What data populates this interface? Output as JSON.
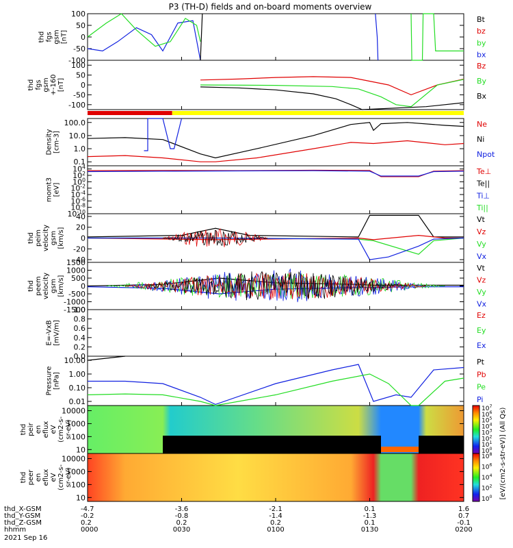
{
  "title": "P3 (TH-D) fields and on-board moments overview",
  "colors": {
    "black": "#000000",
    "red": "#e00000",
    "green": "#22dd22",
    "blue": "#1020e0",
    "yellow": "#ffff00"
  },
  "chart_data": {
    "type": "line",
    "xaxis": {
      "tick_times": [
        "0000",
        "0030",
        "0100",
        "0130",
        "0200"
      ],
      "rows": [
        {
          "label": "thd_X-GSM",
          "values": [
            "-4.7",
            "-3.6",
            "-2.1",
            "0.1",
            "1.6"
          ]
        },
        {
          "label": "thd_Y-GSM",
          "values": [
            "-0.2",
            "-0.8",
            "-1.4",
            "-1.3",
            "0.7"
          ]
        },
        {
          "label": "thd_Z-GSM",
          "values": [
            "0.2",
            "0.2",
            "0.2",
            "0.1",
            "-0.1"
          ]
        },
        {
          "label": "hhmm",
          "values": [
            "0000",
            "0030",
            "0100",
            "0130",
            "0200"
          ]
        }
      ],
      "date": "2021 Sep 16"
    },
    "panels": [
      {
        "id": "fgs",
        "ylabel": [
          "thd",
          "fgs",
          "gsm",
          "[nT]"
        ],
        "ylim": [
          -100,
          100
        ],
        "ticks": [
          "100",
          "50",
          "0",
          "-50",
          "-100"
        ],
        "legend": [
          {
            "name": "Bt",
            "color": "#000000"
          },
          {
            "name": "bz",
            "color": "#e00000"
          },
          {
            "name": "by",
            "color": "#22dd22"
          },
          {
            "name": "bx",
            "color": "#1020e0"
          }
        ]
      },
      {
        "id": "fgs_clip",
        "ylabel": [
          "thd",
          "fgs",
          "gsm",
          "+-160",
          "[nT]"
        ],
        "ylim": [
          -125,
          125
        ],
        "ticks": [
          "100",
          "50",
          "0",
          "-50",
          "-100"
        ],
        "legend": [
          {
            "name": "Bz",
            "color": "#e00000"
          },
          {
            "name": "By",
            "color": "#22dd22"
          },
          {
            "name": "Bx",
            "color": "#000000"
          }
        ]
      },
      {
        "id": "density",
        "ylabel": [
          "Density",
          "[cm-3]"
        ],
        "ylim": [
          0.05,
          200
        ],
        "scale": "log",
        "ticks": [
          "100.0",
          "10.0",
          "1.0",
          "0.1"
        ],
        "legend": [
          {
            "name": "Ne",
            "color": "#e00000"
          },
          {
            "name": "Ni",
            "color": "#000000"
          },
          {
            "name": "Npot",
            "color": "#1020e0"
          }
        ]
      },
      {
        "id": "temp",
        "ylabel": [
          "momt3",
          "[eV]"
        ],
        "ylim": [
          1e-10,
          100000.0
        ],
        "scale": "log",
        "ticks": [
          "10^4",
          "10^2",
          "10^0",
          "10^-2",
          "10^-4",
          "10^-6",
          "10^-8",
          "10^-10"
        ],
        "legend": [
          {
            "name": "Te⊥",
            "color": "#e00000"
          },
          {
            "name": "Te||",
            "color": "#000000"
          },
          {
            "name": "Ti⊥",
            "color": "#1020e0"
          },
          {
            "name": "Ti||",
            "color": "#22dd22"
          }
        ]
      },
      {
        "id": "peim",
        "ylabel": [
          "thd",
          "peim",
          "velocity",
          "gsm",
          "[km/s]"
        ],
        "ylim": [
          -45,
          45
        ],
        "ticks": [
          "40",
          "20",
          "0",
          "-20",
          "-40"
        ],
        "legend": [
          {
            "name": "Vt",
            "color": "#000000"
          },
          {
            "name": "Vz",
            "color": "#e00000"
          },
          {
            "name": "Vy",
            "color": "#22dd22"
          },
          {
            "name": "Vx",
            "color": "#1020e0"
          }
        ]
      },
      {
        "id": "peem",
        "ylabel": [
          "thd",
          "peem",
          "velocity",
          "gsm",
          "[km/s]"
        ],
        "ylim": [
          -1500,
          1500
        ],
        "ticks": [
          "1500",
          "1000",
          "500",
          "0",
          "-500",
          "-1000",
          "-1500"
        ],
        "legend": [
          {
            "name": "Vt",
            "color": "#000000"
          },
          {
            "name": "Vz",
            "color": "#e00000"
          },
          {
            "name": "Vy",
            "color": "#22dd22"
          },
          {
            "name": "Vx",
            "color": "#1020e0"
          }
        ]
      },
      {
        "id": "efield",
        "ylabel": [
          "E=-VxB",
          "[mV/m]"
        ],
        "ylim": [
          0,
          1
        ],
        "ticks": [
          "1.0",
          "0.8",
          "0.6",
          "0.4",
          "0.2",
          "0.0"
        ],
        "legend": [
          {
            "name": "Ez",
            "color": "#e00000"
          },
          {
            "name": "Ey",
            "color": "#22dd22"
          },
          {
            "name": "Ex",
            "color": "#1020e0"
          }
        ]
      },
      {
        "id": "pressure",
        "ylabel": [
          "Pressure",
          "[nPa]"
        ],
        "ylim": [
          0.005,
          20
        ],
        "scale": "log",
        "ticks": [
          "10.00",
          "1.00",
          "0.10",
          "0.01"
        ],
        "legend": [
          {
            "name": "Pt",
            "color": "#000000"
          },
          {
            "name": "Pb",
            "color": "#e00000"
          },
          {
            "name": "Pe",
            "color": "#22dd22"
          },
          {
            "name": "Pi",
            "color": "#1020e0"
          }
        ]
      },
      {
        "id": "peir",
        "type": "heatmap",
        "ylabel": [
          "thd",
          "peir",
          "en",
          "eflux",
          "eV",
          "(cm2-s-",
          "sr-eV)"
        ],
        "ylim": [
          5,
          25000
        ],
        "scale": "log",
        "ticks": [
          "10000",
          "1000",
          "100",
          "10"
        ],
        "colorbar": {
          "range": [
            "10^0",
            "10^7"
          ],
          "ticks": [
            "10^7",
            "10^6",
            "10^5",
            "10^4",
            "10^3",
            "10^2",
            "10^1",
            "10^0"
          ]
        }
      },
      {
        "id": "peer",
        "type": "heatmap",
        "ylabel": [
          "thd",
          "peer",
          "en",
          "eflux",
          "eV",
          "(cm2-s-",
          "sr-eV)"
        ],
        "ylim": [
          5,
          25000
        ],
        "scale": "log",
        "ticks": [
          "10000",
          "1000",
          "100",
          "10"
        ],
        "colorbar": {
          "range": [
            "10^0",
            "10^8"
          ],
          "ticks": [
            "10^8",
            "10^6",
            "10^4",
            "10^2",
            "10^0"
          ]
        }
      }
    ],
    "colorbar_label": "[eV/(cm2-s-str-eV)] (All Qs)",
    "mode_bar": [
      {
        "from": 0,
        "to": 0.225,
        "color": "#e00000"
      },
      {
        "from": 0.225,
        "to": 1,
        "color": "#ffff00"
      }
    ],
    "series": [
      {
        "panel": "fgs",
        "name": "bx",
        "x": [
          0,
          0.04,
          0.08,
          0.13,
          0.17,
          0.2,
          0.24,
          0.28,
          0.3
        ],
        "y": [
          -50,
          -60,
          -20,
          40,
          10,
          -60,
          60,
          70,
          -110
        ]
      },
      {
        "panel": "fgs",
        "name": "by",
        "x": [
          0,
          0.05,
          0.09,
          0.13,
          0.18,
          0.22,
          0.26,
          0.29,
          0.3
        ],
        "y": [
          0,
          60,
          100,
          30,
          -40,
          -20,
          80,
          50,
          -20
        ]
      },
      {
        "panel": "fgs",
        "name": "Bt",
        "x": [
          0.3,
          0.305
        ],
        "y": [
          -100,
          100
        ]
      },
      {
        "panel": "fgs",
        "name": "bx",
        "x": [
          0.765,
          0.77,
          0.772
        ],
        "y": [
          100,
          0,
          -100
        ]
      },
      {
        "panel": "fgs",
        "name": "by",
        "x": [
          0.86,
          0.862,
          0.89,
          0.892,
          0.92,
          0.925,
          1
        ],
        "y": [
          100,
          -100,
          -100,
          100,
          100,
          -60,
          -60
        ]
      },
      {
        "panel": "fgs_clip",
        "name": "Bz",
        "x": [
          0.3,
          0.4,
          0.5,
          0.6,
          0.7,
          0.8,
          0.86,
          0.93,
          1
        ],
        "y": [
          25,
          30,
          38,
          42,
          38,
          0,
          -50,
          0,
          30
        ]
      },
      {
        "panel": "fgs_clip",
        "name": "By",
        "x": [
          0.3,
          0.5,
          0.65,
          0.72,
          0.78,
          0.82,
          0.86,
          0.93,
          1
        ],
        "y": [
          0,
          -2,
          -8,
          -20,
          -60,
          -100,
          -110,
          0,
          28
        ]
      },
      {
        "panel": "fgs_clip",
        "name": "Bx",
        "x": [
          0.3,
          0.4,
          0.5,
          0.6,
          0.66,
          0.7,
          0.73,
          0.9,
          1
        ],
        "y": [
          -10,
          -15,
          -25,
          -45,
          -70,
          -100,
          -125,
          -110,
          -90
        ]
      },
      {
        "panel": "density",
        "name": "Ni",
        "x": [
          0,
          0.1,
          0.2,
          0.3,
          0.34,
          0.45,
          0.6,
          0.7,
          0.75,
          0.76,
          0.78,
          0.85,
          0.95,
          1
        ],
        "y": [
          6,
          7,
          5,
          0.4,
          0.2,
          1,
          10,
          70,
          100,
          25,
          80,
          100,
          60,
          50
        ]
      },
      {
        "panel": "density",
        "name": "Ne",
        "x": [
          0,
          0.1,
          0.2,
          0.3,
          0.34,
          0.45,
          0.6,
          0.7,
          0.76,
          0.85,
          0.95,
          1
        ],
        "y": [
          0.25,
          0.3,
          0.2,
          0.1,
          0.1,
          0.2,
          1,
          3,
          2.5,
          4,
          2,
          2.5
        ]
      },
      {
        "panel": "density",
        "name": "Npot",
        "x": [
          0.15,
          0.16,
          0.16,
          0.2,
          0.22,
          0.23,
          0.25
        ],
        "y": [
          0.7,
          0.7,
          200,
          200,
          1,
          1,
          200
        ]
      },
      {
        "panel": "temp",
        "name": "Te⊥",
        "x": [
          0,
          0.2,
          0.4,
          0.6,
          0.75,
          0.78,
          0.88,
          0.92,
          1
        ],
        "y": [
          3000,
          3500,
          3000,
          4000,
          3500,
          40,
          40,
          2000,
          3000
        ]
      },
      {
        "panel": "temp",
        "name": "Ti⊥",
        "x": [
          0,
          0.2,
          0.4,
          0.6,
          0.75,
          0.78,
          0.88,
          0.92,
          1
        ],
        "y": [
          1500,
          2000,
          2500,
          3000,
          2000,
          60,
          60,
          1500,
          2000
        ]
      },
      {
        "panel": "peim",
        "name": "Vt",
        "x": [
          0,
          0.25,
          0.34,
          0.43,
          0.72,
          0.75,
          0.88,
          0.92,
          1
        ],
        "y": [
          2,
          5,
          18,
          5,
          2,
          42,
          42,
          2,
          2
        ]
      },
      {
        "panel": "peim",
        "name": "Vz",
        "x": [
          0,
          0.34,
          0.72,
          0.76,
          0.88,
          0.95,
          1
        ],
        "y": [
          0,
          -3,
          0,
          -3,
          5,
          0,
          0
        ]
      },
      {
        "panel": "peim",
        "name": "Vy",
        "x": [
          0,
          0.34,
          0.72,
          0.76,
          0.88,
          0.92,
          1
        ],
        "y": [
          0,
          0,
          -2,
          -5,
          -30,
          -5,
          0
        ]
      },
      {
        "panel": "peim",
        "name": "Vx",
        "x": [
          0,
          0.34,
          0.72,
          0.75,
          0.8,
          0.88,
          0.92,
          1
        ],
        "y": [
          0,
          0,
          -2,
          -40,
          -35,
          -15,
          -2,
          0
        ]
      },
      {
        "panel": "peem",
        "name": "Vt",
        "x": [
          0,
          0.2,
          0.35,
          0.5,
          0.72,
          0.76,
          0.9,
          1
        ],
        "y": [
          0,
          100,
          500,
          200,
          100,
          50,
          50,
          50
        ]
      },
      {
        "panel": "peem",
        "name": "Vx",
        "x": [
          0,
          0.2,
          0.35,
          0.5,
          0.72,
          0.9,
          1
        ],
        "y": [
          -50,
          -150,
          -500,
          -200,
          -100,
          -50,
          -50
        ]
      },
      {
        "panel": "pressure",
        "name": "Pi",
        "x": [
          0,
          0.1,
          0.2,
          0.3,
          0.34,
          0.5,
          0.65,
          0.72,
          0.76,
          0.82,
          0.86,
          0.92,
          1
        ],
        "y": [
          0.3,
          0.3,
          0.2,
          0.02,
          0.006,
          0.2,
          2,
          5,
          0.01,
          0.03,
          0.02,
          2,
          3
        ]
      },
      {
        "panel": "pressure",
        "name": "Pe",
        "x": [
          0,
          0.1,
          0.2,
          0.3,
          0.34,
          0.5,
          0.65,
          0.75,
          0.8,
          0.86,
          0.88,
          0.95,
          1
        ],
        "y": [
          0.03,
          0.035,
          0.03,
          0.01,
          0.005,
          0.03,
          0.3,
          1,
          0.2,
          0.005,
          0.005,
          0.3,
          0.5
        ]
      },
      {
        "panel": "pressure",
        "name": "Pt",
        "x": [
          0,
          0.1
        ],
        "y": [
          10,
          20
        ]
      }
    ]
  }
}
